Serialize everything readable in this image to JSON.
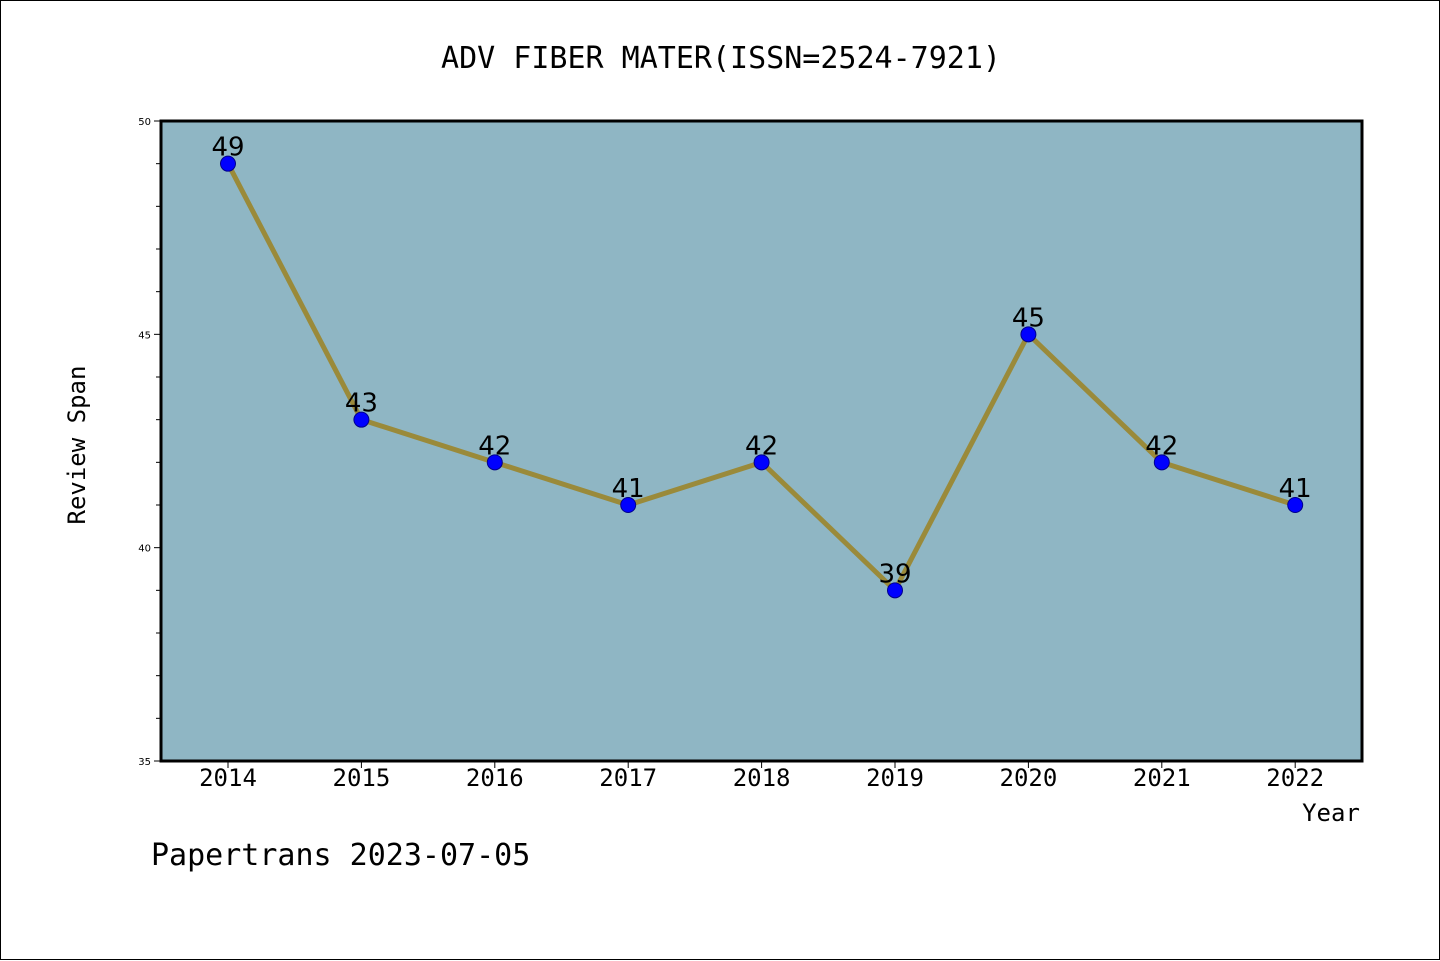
{
  "chart_data": {
    "type": "line",
    "title": "ADV FIBER MATER(ISSN=2524-7921)",
    "xlabel": "Year",
    "ylabel": "Review Span",
    "categories": [
      "2014",
      "2015",
      "2016",
      "2017",
      "2018",
      "2019",
      "2020",
      "2021",
      "2022"
    ],
    "values": [
      49,
      43,
      42,
      41,
      42,
      39,
      45,
      42,
      41
    ],
    "data_labels": [
      "49",
      "43",
      "42",
      "41",
      "42",
      "39",
      "45",
      "42",
      "41"
    ],
    "ylim": [
      35,
      50
    ],
    "yticks": [
      "35",
      "40",
      "45",
      "50"
    ],
    "grid": false,
    "legend": "none",
    "colors": {
      "plot_background": "#8fb6c4",
      "line": "#9a8a3a",
      "marker": "#0000ff",
      "marker_edge": "#00008b"
    }
  },
  "footer": {
    "text": "Papertrans 2023-07-05"
  }
}
